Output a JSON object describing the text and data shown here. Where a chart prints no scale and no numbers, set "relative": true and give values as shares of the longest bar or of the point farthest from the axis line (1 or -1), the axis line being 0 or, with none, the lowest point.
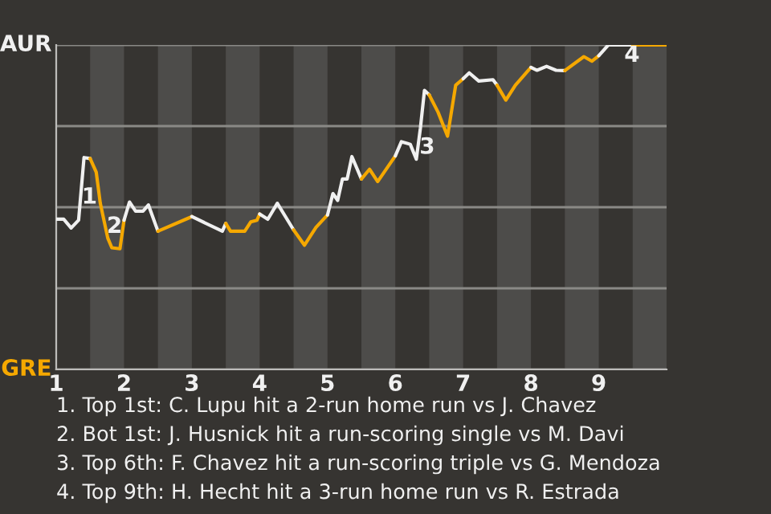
{
  "chart_data": {
    "type": "line",
    "relative": true,
    "series": [
      {
        "color": "#f0f0f0",
        "x": [
          1.0,
          1.11,
          1.22,
          1.33,
          1.41,
          1.5
        ],
        "values": [
          0.463,
          0.463,
          0.436,
          0.46,
          0.653,
          0.65
        ]
      },
      {
        "color": "#f5a800",
        "x": [
          1.5,
          1.59,
          1.65,
          1.76,
          1.82,
          1.94,
          2.0
        ],
        "values": [
          0.65,
          0.608,
          0.512,
          0.405,
          0.375,
          0.372,
          0.46
        ]
      },
      {
        "color": "#f0f0f0",
        "x": [
          2.0,
          2.08,
          2.17,
          2.28,
          2.36,
          2.5
        ],
        "values": [
          0.46,
          0.516,
          0.488,
          0.488,
          0.507,
          0.426
        ]
      },
      {
        "color": "#f5a800",
        "x": [
          2.5,
          3.0
        ],
        "values": [
          0.426,
          0.471
        ]
      },
      {
        "color": "#f0f0f0",
        "x": [
          3.0,
          3.45,
          3.5
        ],
        "values": [
          0.471,
          0.426,
          0.45
        ]
      },
      {
        "color": "#f5a800",
        "x": [
          3.5,
          3.57,
          3.78,
          3.87,
          3.96,
          4.0
        ],
        "values": [
          0.45,
          0.426,
          0.426,
          0.455,
          0.46,
          0.479
        ]
      },
      {
        "color": "#f0f0f0",
        "x": [
          4.0,
          4.12,
          4.26,
          4.5
        ],
        "values": [
          0.479,
          0.463,
          0.512,
          0.43
        ]
      },
      {
        "color": "#f5a800",
        "x": [
          4.5,
          4.66,
          4.83,
          5.0
        ],
        "values": [
          0.43,
          0.383,
          0.438,
          0.476
        ]
      },
      {
        "color": "#f0f0f0",
        "x": [
          5.0,
          5.08,
          5.15,
          5.22,
          5.29,
          5.36,
          5.5
        ],
        "values": [
          0.476,
          0.542,
          0.521,
          0.587,
          0.587,
          0.656,
          0.587
        ]
      },
      {
        "color": "#f5a800",
        "x": [
          5.5,
          5.62,
          5.74,
          6.0
        ],
        "values": [
          0.587,
          0.617,
          0.579,
          0.658
        ]
      },
      {
        "color": "#f0f0f0",
        "x": [
          6.0,
          6.09,
          6.22,
          6.31,
          6.37,
          6.43,
          6.5
        ],
        "values": [
          0.658,
          0.702,
          0.694,
          0.648,
          0.744,
          0.86,
          0.846
        ]
      },
      {
        "color": "#f5a800",
        "x": [
          6.5,
          6.63,
          6.77,
          6.89,
          7.0
        ],
        "values": [
          0.846,
          0.793,
          0.719,
          0.876,
          0.896
        ]
      },
      {
        "color": "#f0f0f0",
        "x": [
          7.0,
          7.09,
          7.23,
          7.44,
          7.5
        ],
        "values": [
          0.896,
          0.914,
          0.889,
          0.893,
          0.876
        ]
      },
      {
        "color": "#f5a800",
        "x": [
          7.5,
          7.63,
          7.77,
          8.0
        ],
        "values": [
          0.876,
          0.83,
          0.876,
          0.931
        ]
      },
      {
        "color": "#f0f0f0",
        "x": [
          8.0,
          8.09,
          8.23,
          8.37,
          8.5
        ],
        "values": [
          0.931,
          0.922,
          0.934,
          0.922,
          0.921
        ]
      },
      {
        "color": "#f5a800",
        "x": [
          8.5,
          8.78,
          8.9,
          9.0
        ],
        "values": [
          0.921,
          0.964,
          0.95,
          0.967
        ]
      },
      {
        "color": "#f0f0f0",
        "x": [
          9.0,
          9.14,
          9.5
        ],
        "values": [
          0.967,
          1,
          1
        ]
      },
      {
        "color": "#f5a800",
        "x": [
          9.5,
          10.0
        ],
        "values": [
          1,
          1
        ]
      }
    ],
    "xlim": [
      1,
      10
    ],
    "xticks": [
      1,
      2,
      3,
      4,
      5,
      6,
      7,
      8,
      9
    ],
    "grid": "y",
    "bands": [
      {
        "axis": "x",
        "from": 1.5,
        "to": 2,
        "color": "#4d4c4a"
      },
      {
        "axis": "x",
        "from": 2.5,
        "to": 3,
        "color": "#4d4c4a"
      },
      {
        "axis": "x",
        "from": 3.5,
        "to": 4,
        "color": "#4d4c4a"
      },
      {
        "axis": "x",
        "from": 4.5,
        "to": 5,
        "color": "#4d4c4a"
      },
      {
        "axis": "x",
        "from": 5.5,
        "to": 6,
        "color": "#4d4c4a"
      },
      {
        "axis": "x",
        "from": 6.5,
        "to": 7,
        "color": "#4d4c4a"
      },
      {
        "axis": "x",
        "from": 7.5,
        "to": 8,
        "color": "#4d4c4a"
      },
      {
        "axis": "x",
        "from": 8.5,
        "to": 9,
        "color": "#4d4c4a"
      },
      {
        "axis": "x",
        "from": 9.5,
        "to": 10,
        "color": "#4d4c4a"
      }
    ],
    "annotations": [
      "AUR",
      "GRE",
      {
        "text": "1",
        "x": 1.49,
        "y": 0.53
      },
      {
        "text": "2",
        "x": 1.86,
        "y": 0.44
      },
      {
        "text": "3",
        "x": 6.47,
        "y": 0.684
      },
      {
        "text": "4",
        "x": 9.49,
        "y": 0.967
      },
      "1. Top 1st: C. Lupu hit a 2-run home run vs J. Chavez",
      "2. Bot 1st: J. Husnick hit a run-scoring single vs M. Davi",
      "3. Top 6th: F. Chavez hit a run-scoring triple vs G. Mendoza",
      "4. Top 9th: H. Hecht hit a 3-run home run vs R. Estrada"
    ]
  }
}
